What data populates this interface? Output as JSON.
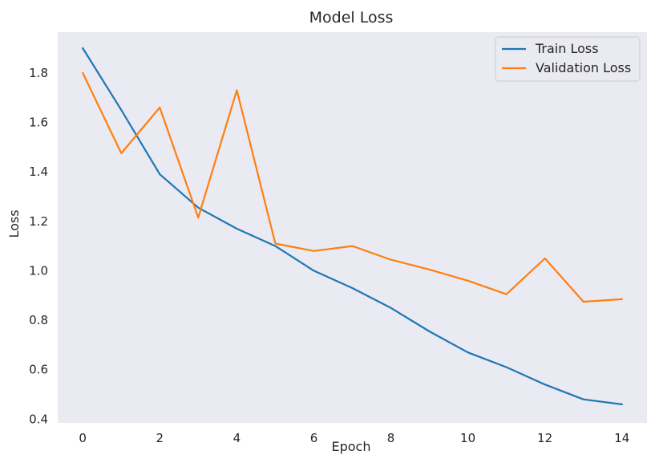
{
  "chart_data": {
    "type": "line",
    "title": "Model Loss",
    "xlabel": "Epoch",
    "ylabel": "Loss",
    "x": [
      0,
      1,
      2,
      3,
      4,
      5,
      6,
      7,
      8,
      9,
      10,
      11,
      12,
      13,
      14
    ],
    "series": [
      {
        "name": "Train Loss",
        "color": "#1f77b4",
        "values": [
          1.9,
          1.65,
          1.39,
          1.255,
          1.17,
          1.1,
          1.0,
          0.93,
          0.85,
          0.755,
          0.67,
          0.61,
          0.54,
          0.48,
          0.46
        ]
      },
      {
        "name": "Validation Loss",
        "color": "#ff7f0e",
        "values": [
          1.8,
          1.475,
          1.66,
          1.215,
          1.73,
          1.11,
          1.08,
          1.1,
          1.045,
          1.005,
          0.96,
          0.905,
          1.05,
          0.875,
          0.885
        ]
      }
    ],
    "xlim": [
      -0.65,
      14.65
    ],
    "ylim": [
      0.385,
      1.965
    ],
    "xticks": [
      0,
      2,
      4,
      6,
      8,
      10,
      12,
      14
    ],
    "yticks": [
      0.4,
      0.6,
      0.8,
      1.0,
      1.2,
      1.4,
      1.6,
      1.8
    ],
    "ytick_labels": [
      "0.4",
      "0.6",
      "0.8",
      "1.0",
      "1.2",
      "1.4",
      "1.6",
      "1.8"
    ],
    "grid": false,
    "legend_position": "top-right",
    "plot_background": "#eaeaf2"
  }
}
